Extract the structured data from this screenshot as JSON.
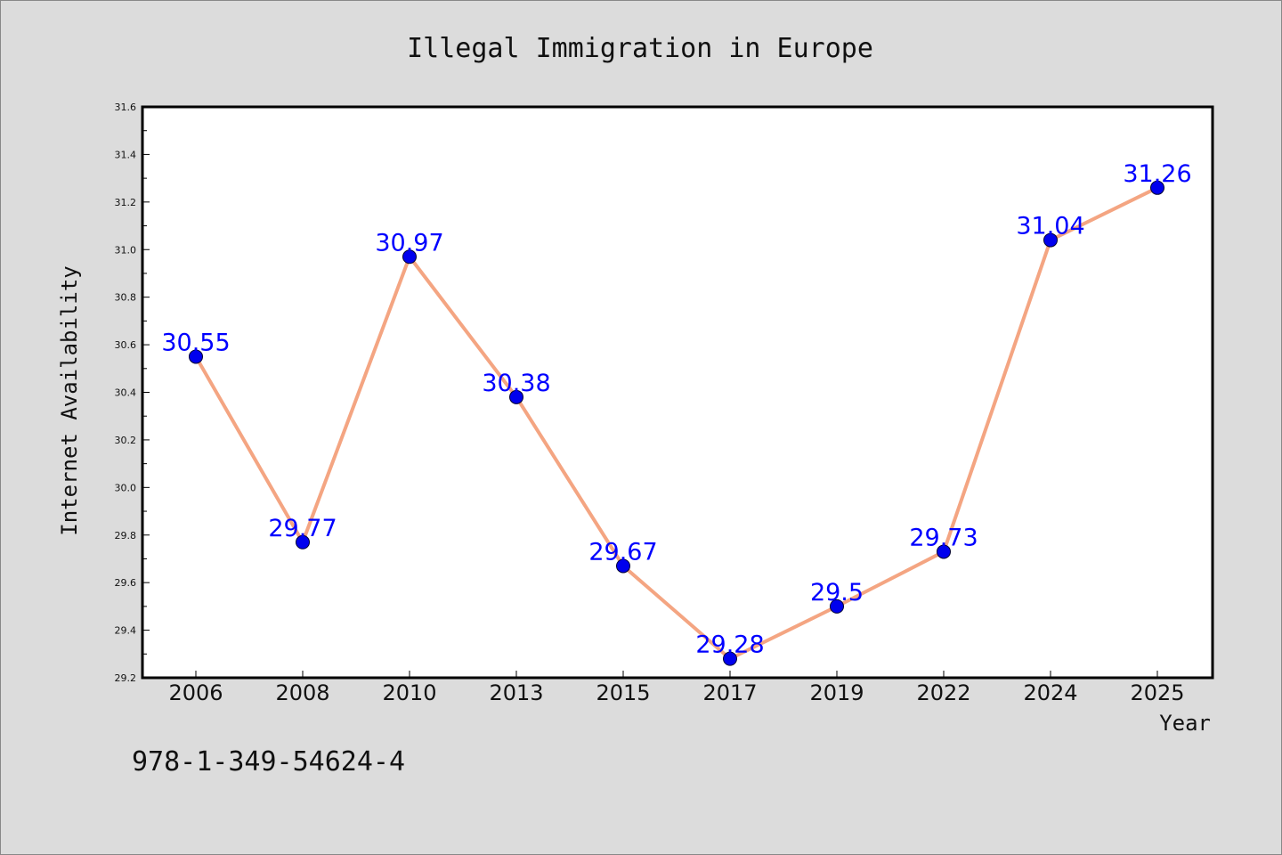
{
  "chart_data": {
    "type": "line",
    "title": "Illegal Immigration in Europe",
    "xlabel": "Year",
    "ylabel": "Internet Availability",
    "categories": [
      "2006",
      "2008",
      "2010",
      "2013",
      "2015",
      "2017",
      "2019",
      "2022",
      "2024",
      "2025"
    ],
    "values": [
      30.55,
      29.77,
      30.97,
      30.38,
      29.67,
      29.28,
      29.5,
      29.73,
      31.04,
      31.26
    ],
    "data_labels": [
      "30.55",
      "29.77",
      "30.97",
      "30.38",
      "29.67",
      "29.28",
      "29.5",
      "29.73",
      "31.04",
      "31.26"
    ],
    "ylim": [
      29.2,
      31.6
    ],
    "yticks": [
      "29.2",
      "29.4",
      "29.6",
      "29.8",
      "30.0",
      "30.2",
      "30.4",
      "30.6",
      "30.8",
      "31.0",
      "31.2",
      "31.4",
      "31.6"
    ],
    "grid": false,
    "legend": "none",
    "colors": {
      "line": "#f4a582",
      "marker": "#0000ee",
      "data_label": "#0000ff",
      "background": "#dcdcdc",
      "plot_background": "#ffffff"
    }
  },
  "footer_text": "978-1-349-54624-4"
}
